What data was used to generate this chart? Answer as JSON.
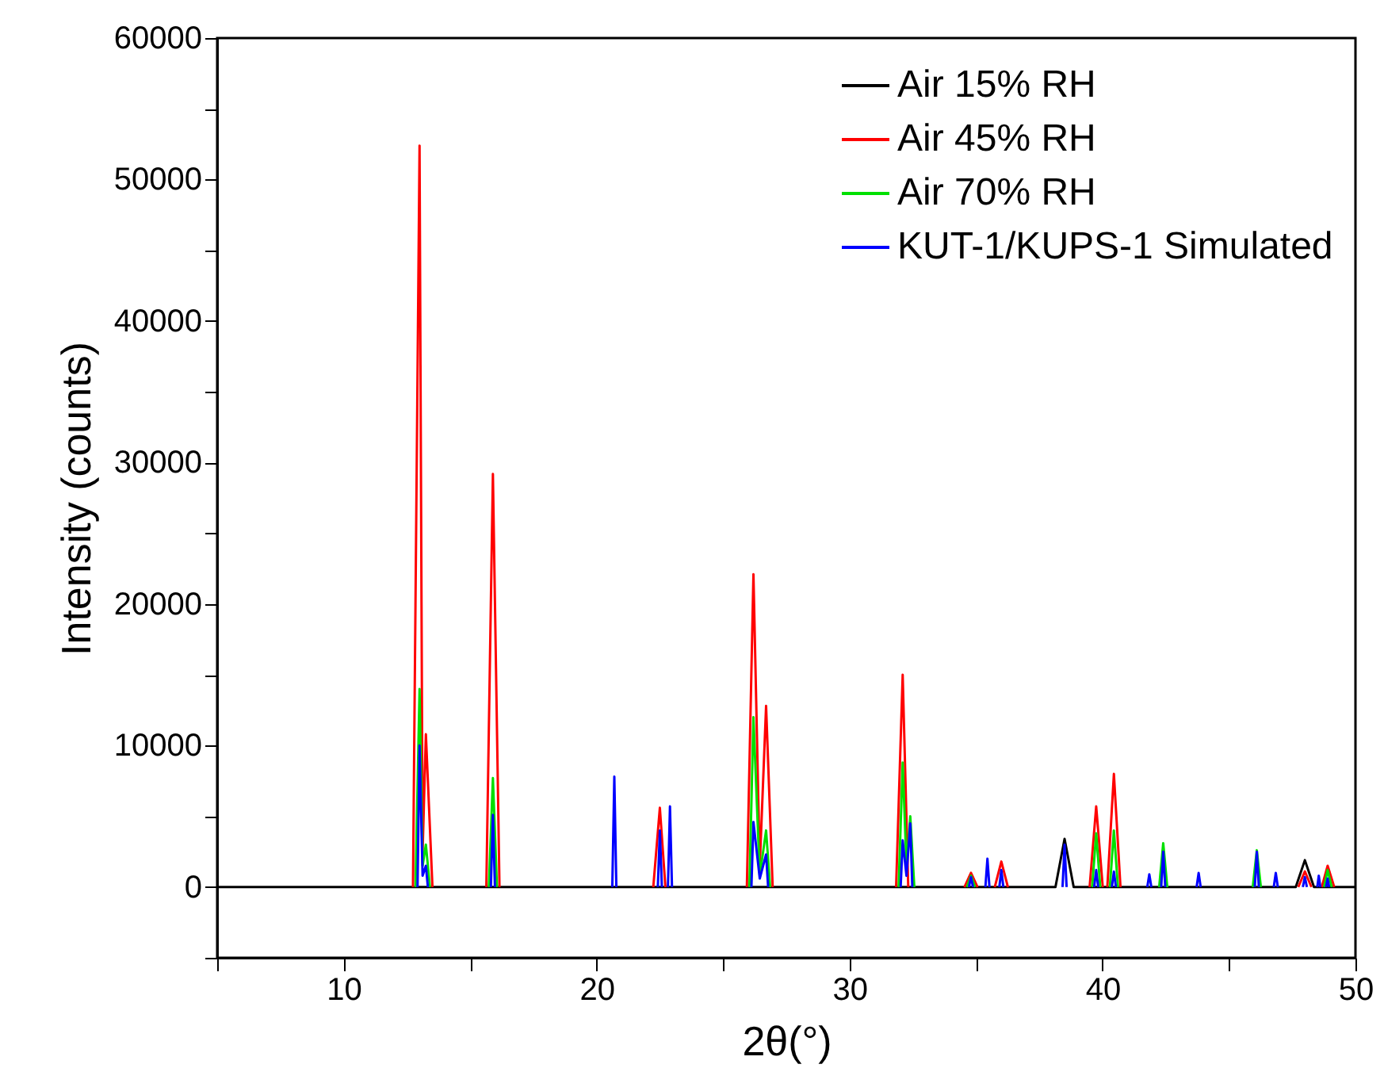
{
  "chart_data": {
    "type": "line",
    "xlabel": "2θ(°)",
    "ylabel": "Intensity (counts)",
    "xlim": [
      5,
      50
    ],
    "ylim": [
      -5000,
      60000
    ],
    "xticks": [
      {
        "value": 5,
        "label": null
      },
      10,
      {
        "value": 15,
        "label": null
      },
      20,
      {
        "value": 25,
        "label": null
      },
      30,
      {
        "value": 35,
        "label": null
      },
      40,
      {
        "value": 45,
        "label": null
      },
      50
    ],
    "yticks": [
      {
        "value": -5000,
        "label": null
      },
      0,
      {
        "value": 5000,
        "label": null
      },
      10000,
      {
        "value": 15000,
        "label": null
      },
      20000,
      {
        "value": 25000,
        "label": null
      },
      30000,
      {
        "value": 35000,
        "label": null
      },
      40000,
      {
        "value": 45000,
        "label": null
      },
      50000,
      {
        "value": 55000,
        "label": null
      },
      60000
    ],
    "grid": false,
    "legend": "top right",
    "series": [
      {
        "name": "Air 15% RH",
        "color": "#000000",
        "x": [
          5,
          38.14,
          38.5,
          38.86,
          47.64,
          48,
          48.36,
          50
        ],
        "values": [
          0,
          0,
          3400,
          0,
          0,
          1900,
          0,
          0
        ]
      },
      {
        "name": "Air 45% RH",
        "color": "#ff0000",
        "x": [
          12.74,
          13,
          13.12,
          13.25,
          13.51,
          null,
          15.64,
          15.9,
          16.16,
          null,
          22.24,
          22.5,
          22.72,
          null,
          25.94,
          26.2,
          26.45,
          26.7,
          26.96,
          null,
          31.84,
          32.1,
          32.32,
          null,
          34.54,
          34.8,
          35.06,
          null,
          35.74,
          36,
          36.26,
          null,
          39.49,
          39.75,
          40.01,
          null,
          40.19,
          40.45,
          40.71,
          null,
          47.74,
          48,
          48.26,
          null,
          48.67,
          48.9,
          49.16
        ],
        "values": [
          0,
          52400,
          2500,
          10800,
          0,
          null,
          0,
          29200,
          0,
          null,
          0,
          5600,
          0,
          null,
          0,
          22100,
          1500,
          12800,
          0,
          null,
          0,
          15000,
          0,
          null,
          0,
          1000,
          0,
          null,
          0,
          1800,
          0,
          null,
          0,
          5700,
          0,
          null,
          0,
          8000,
          0,
          null,
          0,
          1100,
          0,
          null,
          0,
          1500,
          0
        ]
      },
      {
        "name": "Air 70% RH",
        "color": "#00e000",
        "x": [
          12.84,
          13,
          13.12,
          13.25,
          13.41,
          null,
          15.74,
          15.9,
          16.06,
          null,
          26.04,
          26.2,
          26.45,
          26.7,
          26.86,
          null,
          31.94,
          32.1,
          32.25,
          32.4,
          32.56,
          null,
          34.64,
          34.8,
          34.96,
          null,
          39.59,
          39.75,
          39.91,
          null,
          40.29,
          40.45,
          40.61,
          null,
          42.24,
          42.4,
          42.56,
          null,
          45.94,
          46.1,
          46.26,
          null,
          48.76,
          48.9,
          49.06
        ],
        "values": [
          0,
          14000,
          1500,
          3000,
          0,
          null,
          0,
          7700,
          0,
          null,
          0,
          12000,
          800,
          4000,
          0,
          null,
          0,
          8800,
          1500,
          5000,
          0,
          null,
          0,
          800,
          0,
          null,
          0,
          3800,
          0,
          null,
          0,
          4000,
          0,
          null,
          0,
          3100,
          0,
          null,
          0,
          2600,
          0,
          null,
          0,
          1200,
          0
        ]
      },
      {
        "name": "KUT-1/KUPS-1 Simulated",
        "color": "#0000ff",
        "x": [
          12.92,
          13,
          13.12,
          13.25,
          13.33,
          null,
          15.82,
          15.9,
          15.98,
          null,
          20.62,
          20.7,
          20.78,
          null,
          22.42,
          22.5,
          22.58,
          null,
          22.82,
          22.9,
          22.98,
          null,
          26.12,
          26.2,
          26.45,
          26.7,
          26.78,
          null,
          32.02,
          32.1,
          32.25,
          32.4,
          32.48,
          null,
          34.72,
          34.8,
          34.88,
          null,
          35.37,
          35.45,
          35.53,
          null,
          35.92,
          36,
          36.08,
          null,
          38.42,
          38.5,
          38.58,
          null,
          39.67,
          39.75,
          39.83,
          null,
          40.37,
          40.45,
          40.53,
          null,
          41.77,
          41.85,
          41.93,
          null,
          42.32,
          42.4,
          42.48,
          null,
          43.72,
          43.8,
          43.88,
          null,
          46.02,
          46.1,
          46.18,
          null,
          46.77,
          46.85,
          46.93,
          null,
          47.92,
          48,
          48.08,
          null,
          48.49,
          48.55,
          48.61,
          null,
          48.84,
          48.9,
          48.96
        ],
        "values": [
          0,
          10000,
          800,
          1500,
          0,
          null,
          0,
          5100,
          0,
          null,
          0,
          7800,
          0,
          null,
          0,
          4000,
          0,
          null,
          0,
          5700,
          0,
          null,
          0,
          4600,
          600,
          2300,
          0,
          null,
          0,
          3300,
          800,
          4500,
          0,
          null,
          0,
          700,
          0,
          null,
          0,
          2000,
          0,
          null,
          0,
          1200,
          0,
          null,
          0,
          3000,
          0,
          null,
          0,
          1200,
          0,
          null,
          0,
          1100,
          0,
          null,
          0,
          900,
          0,
          null,
          0,
          2500,
          0,
          null,
          0,
          1000,
          0,
          null,
          0,
          2500,
          0,
          null,
          0,
          1000,
          0,
          null,
          0,
          700,
          0,
          null,
          0,
          800,
          0,
          null,
          0,
          600,
          0
        ]
      }
    ]
  }
}
